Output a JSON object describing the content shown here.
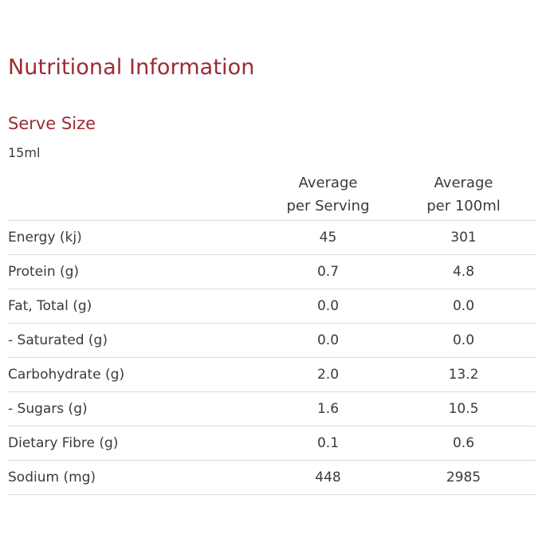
{
  "title": "Nutritional Information",
  "serve": {
    "heading": "Serve Size",
    "value": "15ml"
  },
  "table": {
    "columns": [
      {
        "line1": "Average",
        "line2": "per Serving"
      },
      {
        "line1": "Average",
        "line2": "per 100ml"
      }
    ],
    "rows": [
      {
        "label": "Energy (kj)",
        "per_serving": "45",
        "per_100ml": "301"
      },
      {
        "label": "Protein (g)",
        "per_serving": "0.7",
        "per_100ml": "4.8"
      },
      {
        "label": "Fat, Total (g)",
        "per_serving": "0.0",
        "per_100ml": "0.0"
      },
      {
        "label": "- Saturated (g)",
        "per_serving": "0.0",
        "per_100ml": "0.0"
      },
      {
        "label": "Carbohydrate (g)",
        "per_serving": "2.0",
        "per_100ml": "13.2"
      },
      {
        "label": "- Sugars (g)",
        "per_serving": "1.6",
        "per_100ml": "10.5"
      },
      {
        "label": "Dietary Fibre (g)",
        "per_serving": "0.1",
        "per_100ml": "0.6"
      },
      {
        "label": "Sodium (mg)",
        "per_serving": "448",
        "per_100ml": "2985"
      }
    ]
  },
  "colors": {
    "heading": "#9a2b33",
    "text": "#3a3a3a",
    "rule": "#dcdcdc"
  }
}
